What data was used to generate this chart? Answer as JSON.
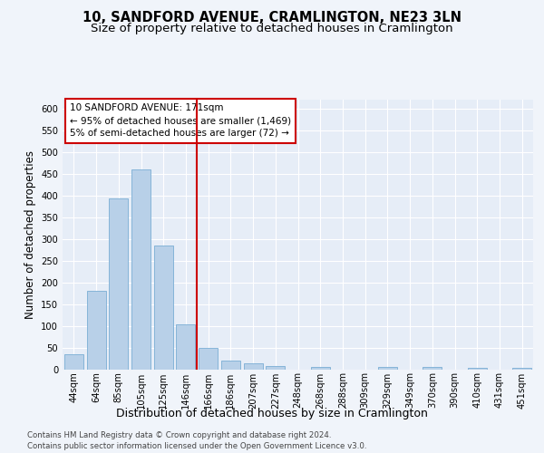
{
  "title": "10, SANDFORD AVENUE, CRAMLINGTON, NE23 3LN",
  "subtitle": "Size of property relative to detached houses in Cramlington",
  "xlabel": "Distribution of detached houses by size in Cramlington",
  "ylabel": "Number of detached properties",
  "footer_line1": "Contains HM Land Registry data © Crown copyright and database right 2024.",
  "footer_line2": "Contains public sector information licensed under the Open Government Licence v3.0.",
  "categories": [
    "44sqm",
    "64sqm",
    "85sqm",
    "105sqm",
    "125sqm",
    "146sqm",
    "166sqm",
    "186sqm",
    "207sqm",
    "227sqm",
    "248sqm",
    "268sqm",
    "288sqm",
    "309sqm",
    "329sqm",
    "349sqm",
    "370sqm",
    "390sqm",
    "410sqm",
    "431sqm",
    "451sqm"
  ],
  "values": [
    35,
    180,
    393,
    460,
    285,
    103,
    48,
    20,
    14,
    8,
    0,
    5,
    0,
    0,
    5,
    0,
    5,
    0,
    3,
    0,
    4
  ],
  "bar_color": "#b8d0e8",
  "bar_edge_color": "#7aadd4",
  "highlight_bar_index": 6,
  "vline_color": "#cc0000",
  "annotation_line1": "10 SANDFORD AVENUE: 171sqm",
  "annotation_line2": "← 95% of detached houses are smaller (1,469)",
  "annotation_line3": "5% of semi-detached houses are larger (72) →",
  "annotation_box_facecolor": "#ffffff",
  "annotation_box_edgecolor": "#cc0000",
  "ylim": [
    0,
    620
  ],
  "yticks": [
    0,
    50,
    100,
    150,
    200,
    250,
    300,
    350,
    400,
    450,
    500,
    550,
    600
  ],
  "fig_bg_color": "#f0f4fa",
  "axes_bg_color": "#e6edf7",
  "grid_color": "#ffffff",
  "title_fontsize": 10.5,
  "subtitle_fontsize": 9.5,
  "ylabel_fontsize": 8.5,
  "xlabel_fontsize": 9,
  "tick_fontsize": 7.2,
  "annotation_fontsize": 7.5,
  "footer_fontsize": 6.2
}
